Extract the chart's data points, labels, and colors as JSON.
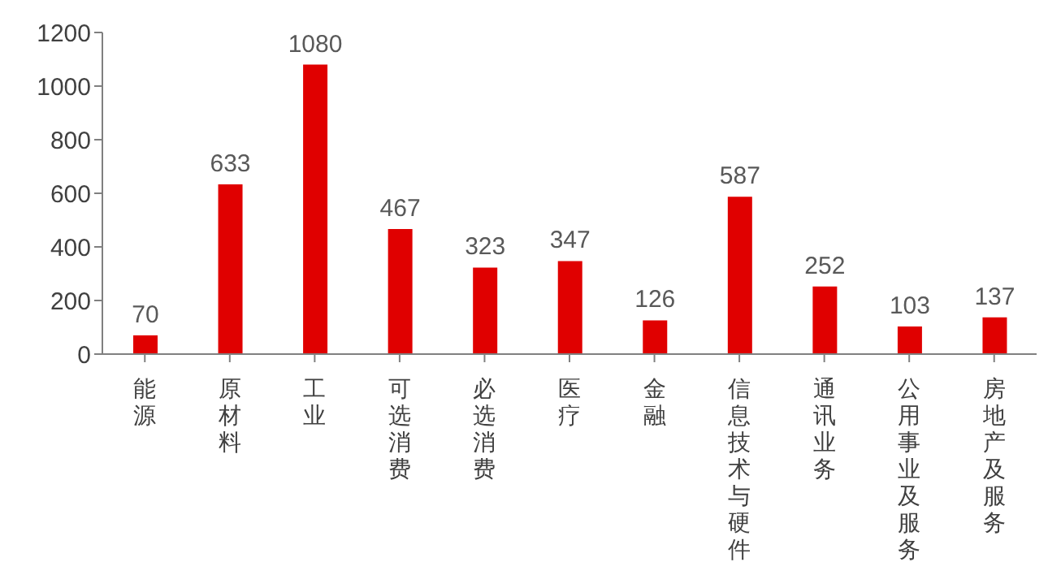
{
  "chart_data": {
    "type": "bar",
    "categories": [
      "能源",
      "原材料",
      "工业",
      "可选消费",
      "必选消费",
      "医疗",
      "金融",
      "信息技术与硬件",
      "通讯业务",
      "公用事业及服务",
      "房地产及服务"
    ],
    "values": [
      70,
      633,
      1080,
      467,
      323,
      347,
      126,
      587,
      252,
      103,
      137
    ],
    "color": "#e00000",
    "ylim": [
      0,
      1200
    ],
    "yticks": [
      0,
      200,
      400,
      600,
      800,
      1000,
      1200
    ],
    "grid": false,
    "data_labels": true
  }
}
